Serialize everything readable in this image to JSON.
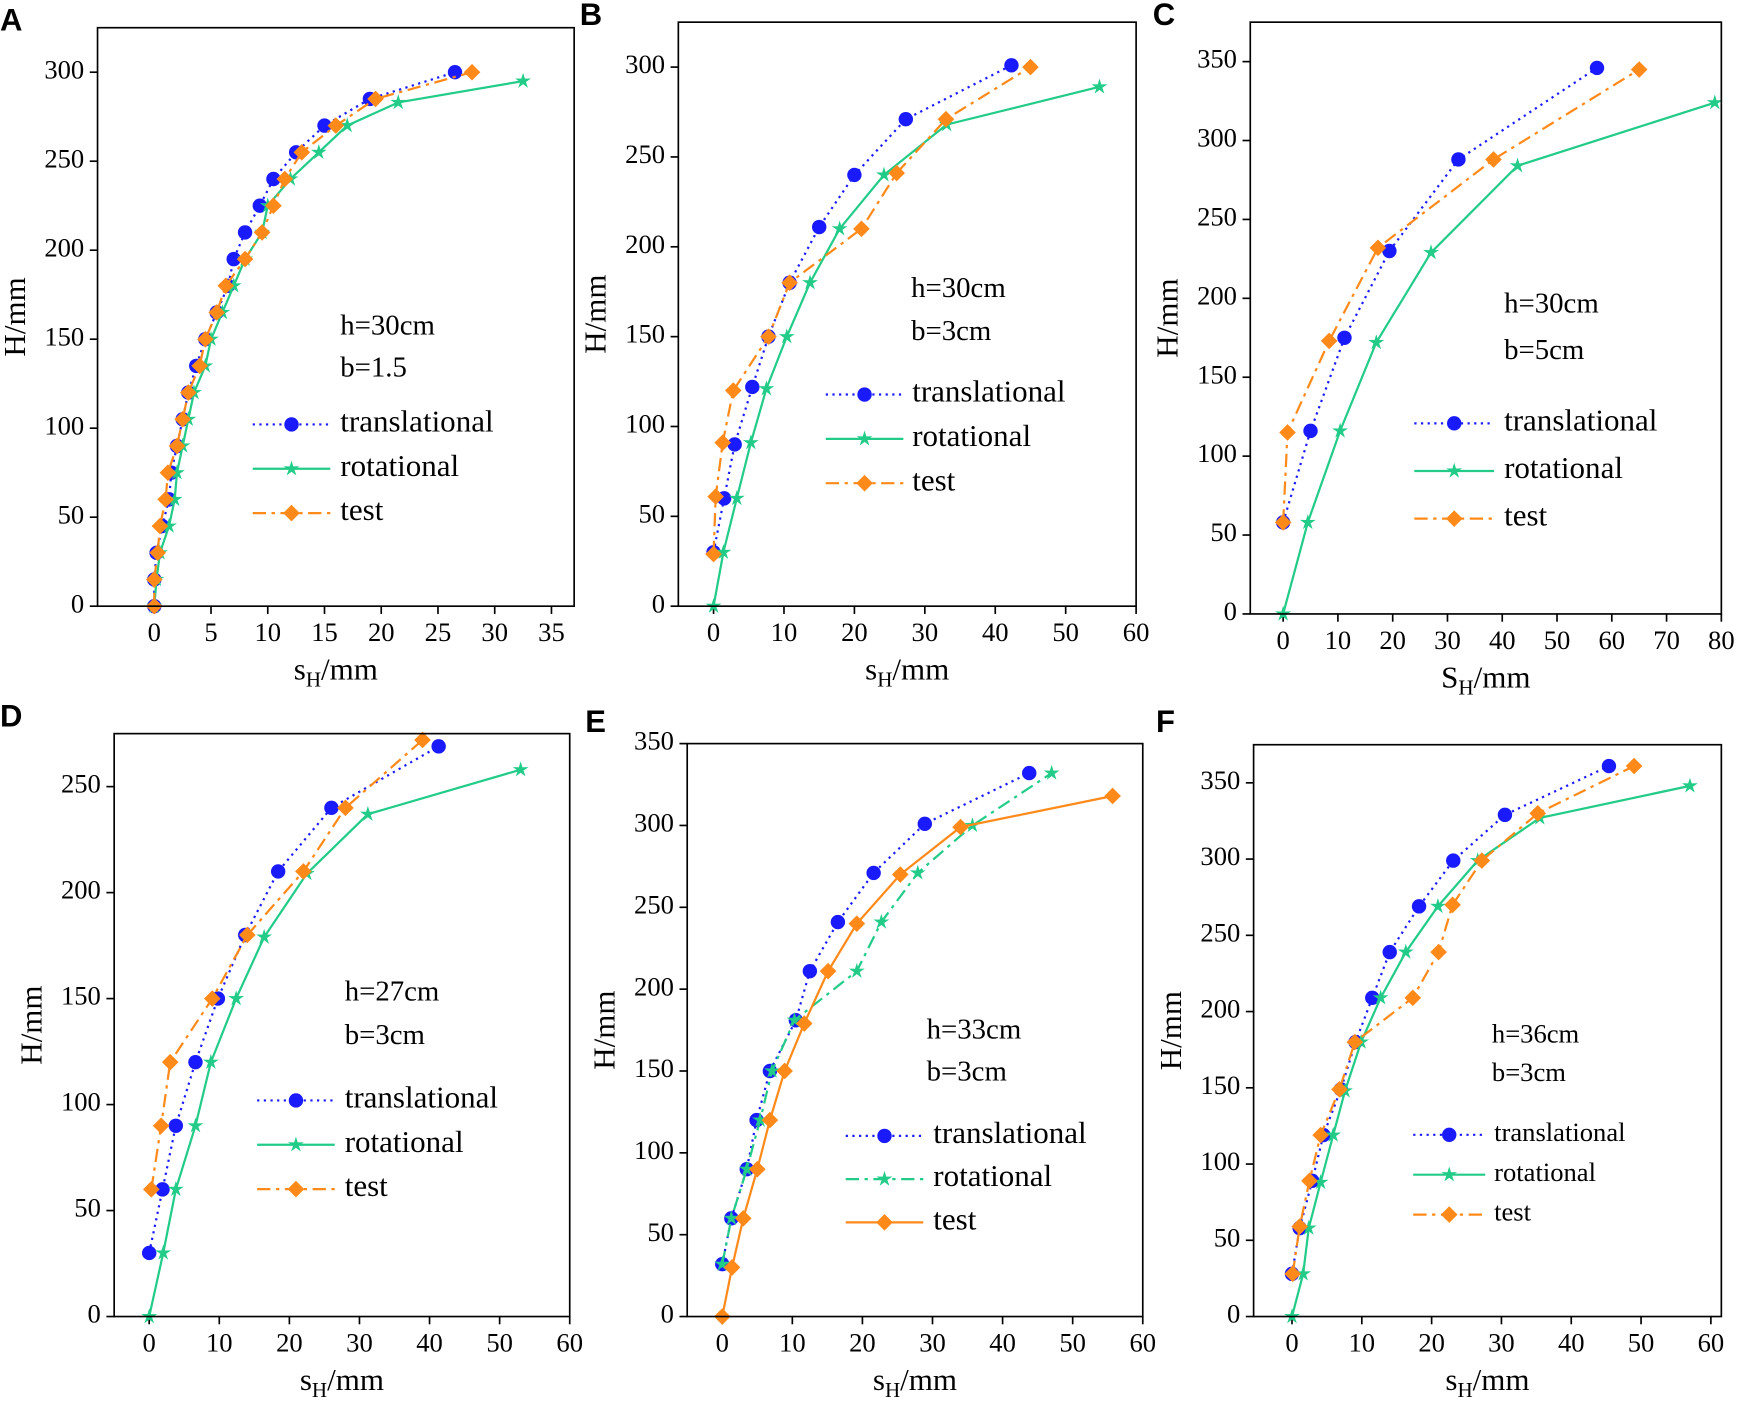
{
  "chart_data": [
    {
      "type": "line",
      "label": "A",
      "annotation": [
        "h=30cm",
        "b=1.5"
      ],
      "xlabel": {
        "text": "s",
        "subscript": "H",
        "suffix": "/mm"
      },
      "ylabel": "H/mm",
      "xlim": [
        -5,
        37
      ],
      "ylim": [
        0,
        325
      ],
      "xticks": [
        0,
        5,
        10,
        15,
        20,
        25,
        30,
        35
      ],
      "yticks": [
        0,
        50,
        100,
        150,
        200,
        250,
        300
      ],
      "series": [
        {
          "name": "translational",
          "color": "#1a1aff",
          "line_style": "dotted",
          "marker": "circle",
          "x": [
            0,
            0,
            0.2,
            0.7,
            1.3,
            1.5,
            2,
            2.5,
            3,
            3.7,
            4.5,
            5.5,
            6.5,
            7,
            8,
            9.3,
            10.5,
            12.5,
            15,
            19,
            26.5
          ],
          "values": [
            0,
            15,
            30,
            45,
            60,
            75,
            90,
            105,
            120,
            135,
            150,
            165,
            180,
            195,
            210,
            225,
            240,
            255,
            270,
            285,
            300
          ]
        },
        {
          "name": "rotational",
          "color": "#22cc88",
          "line_style": "solid",
          "marker": "star",
          "x": [
            0,
            0.2,
            0.5,
            1.3,
            1.8,
            2,
            2.5,
            3,
            3.5,
            4.5,
            5,
            6,
            7,
            8,
            9.5,
            10,
            12,
            14.5,
            17,
            21.5,
            32.5
          ],
          "values": [
            0,
            15,
            30,
            45,
            60,
            75,
            90,
            105,
            120,
            135,
            150,
            165,
            180,
            195,
            210,
            225,
            240,
            255,
            270,
            283,
            295
          ]
        },
        {
          "name": "test",
          "color": "#ff8a1a",
          "line_style": "dashdot",
          "marker": "diamond",
          "x": [
            0,
            0,
            0.3,
            0.5,
            1,
            1.2,
            2,
            2.5,
            3,
            4,
            4.5,
            5.5,
            6.3,
            8,
            9.5,
            10.5,
            11.5,
            13,
            16,
            19.5,
            28
          ],
          "values": [
            0,
            15,
            30,
            45,
            60,
            75,
            90,
            105,
            120,
            135,
            150,
            165,
            180,
            195,
            210,
            225,
            240,
            255,
            270,
            285,
            300
          ]
        }
      ]
    },
    {
      "type": "line",
      "label": "B",
      "annotation": [
        "h=30cm",
        "b=3cm"
      ],
      "xlabel": {
        "text": "s",
        "subscript": "H",
        "suffix": "/mm"
      },
      "ylabel": "H/mm",
      "xlim": [
        -5,
        60
      ],
      "ylim": [
        0,
        325
      ],
      "xticks": [
        0,
        10,
        20,
        30,
        40,
        50,
        60
      ],
      "yticks": [
        0,
        50,
        100,
        150,
        200,
        250,
        300
      ],
      "series": [
        {
          "name": "translational",
          "color": "#1a1aff",
          "line_style": "dotted",
          "marker": "circle",
          "x": [
            0,
            1.5,
            3,
            5.5,
            7.8,
            10.8,
            15,
            20,
            27.3,
            42.3
          ],
          "values": [
            30,
            60,
            90,
            122,
            150,
            180,
            211,
            240,
            271,
            301
          ]
        },
        {
          "name": "rotational",
          "color": "#22cc88",
          "line_style": "solid",
          "marker": "star",
          "x": [
            0,
            1.4,
            3.3,
            5.3,
            7.5,
            10.4,
            13.7,
            17.9,
            24.2,
            33.1,
            54.8
          ],
          "values": [
            0,
            30,
            60,
            91,
            121,
            150,
            180,
            210,
            240,
            268,
            289
          ]
        },
        {
          "name": "test",
          "color": "#ff8a1a",
          "line_style": "dashdot",
          "marker": "diamond",
          "x": [
            0,
            0.3,
            1.3,
            2.8,
            7.8,
            10.8,
            21,
            26,
            33,
            45
          ],
          "values": [
            29,
            61,
            91,
            120,
            150,
            180,
            210,
            241,
            271,
            300
          ]
        }
      ]
    },
    {
      "type": "line",
      "label": "C",
      "annotation": [
        "h=30cm",
        "b=5cm"
      ],
      "xlabel": {
        "text": "S",
        "subscript": "H",
        "suffix": "/mm"
      },
      "ylabel": "H/mm",
      "xlim": [
        -6,
        80
      ],
      "ylim": [
        0,
        375
      ],
      "xticks": [
        0,
        10,
        20,
        30,
        40,
        50,
        60,
        70,
        80
      ],
      "yticks": [
        0,
        50,
        100,
        150,
        200,
        250,
        300,
        350
      ],
      "series": [
        {
          "name": "translational",
          "color": "#1a1aff",
          "line_style": "dotted",
          "marker": "circle",
          "x": [
            0,
            5,
            11.2,
            19.4,
            32,
            57.3
          ],
          "values": [
            58,
            116,
            175,
            230,
            288,
            346
          ]
        },
        {
          "name": "rotational",
          "color": "#22cc88",
          "line_style": "solid",
          "marker": "star",
          "x": [
            0,
            4.5,
            10.4,
            17,
            27,
            42.8,
            78.8
          ],
          "values": [
            0,
            58,
            116,
            172,
            229,
            284,
            324
          ]
        },
        {
          "name": "test",
          "color": "#ff8a1a",
          "line_style": "dashdot",
          "marker": "diamond",
          "x": [
            0,
            0.8,
            8.4,
            17.3,
            38.4,
            65
          ],
          "values": [
            58,
            115,
            173,
            232,
            288,
            345
          ]
        }
      ]
    },
    {
      "type": "line",
      "label": "D",
      "annotation": [
        "h=27cm",
        "b=3cm"
      ],
      "xlabel": {
        "text": "s",
        "subscript": "H",
        "suffix": "/mm"
      },
      "ylabel": "H/mm",
      "xlim": [
        -5,
        60
      ],
      "ylim": [
        0,
        275
      ],
      "xticks": [
        0,
        10,
        20,
        30,
        40,
        50,
        60
      ],
      "yticks": [
        0,
        50,
        100,
        150,
        200,
        250
      ],
      "series": [
        {
          "name": "translational",
          "color": "#1a1aff",
          "line_style": "dotted",
          "marker": "circle",
          "x": [
            0,
            1.9,
            3.8,
            6.6,
            9.8,
            13.7,
            18.4,
            26,
            41.3
          ],
          "values": [
            30,
            60,
            90,
            120,
            150,
            180,
            210,
            240,
            269
          ]
        },
        {
          "name": "rotational",
          "color": "#22cc88",
          "line_style": "solid",
          "marker": "star",
          "x": [
            0,
            2,
            3.8,
            6.6,
            8.8,
            12.4,
            16.4,
            22.5,
            31.2,
            53
          ],
          "values": [
            0,
            30,
            60,
            90,
            120,
            150,
            179,
            209,
            237,
            258
          ]
        },
        {
          "name": "test",
          "color": "#ff8a1a",
          "line_style": "dashdot",
          "marker": "diamond",
          "x": [
            0.3,
            1.7,
            3,
            9,
            14,
            22,
            28,
            39
          ],
          "values": [
            60,
            90,
            120,
            150,
            180,
            210,
            240,
            272
          ]
        }
      ]
    },
    {
      "type": "line",
      "label": "E",
      "annotation": [
        "h=33cm",
        "b=3cm"
      ],
      "xlabel": {
        "text": "s",
        "subscript": "H",
        "suffix": "/mm"
      },
      "ylabel": "H/mm",
      "xlim": [
        -5,
        60
      ],
      "ylim": [
        0,
        350
      ],
      "xticks": [
        0,
        10,
        20,
        30,
        40,
        50,
        60
      ],
      "yticks": [
        0,
        50,
        100,
        150,
        200,
        250,
        300,
        350
      ],
      "series": [
        {
          "name": "translational",
          "color": "#1a1aff",
          "line_style": "dotted",
          "marker": "circle",
          "x": [
            0,
            1.3,
            3.5,
            4.9,
            6.8,
            10.5,
            12.5,
            16.5,
            21.6,
            28.9,
            43.8
          ],
          "values": [
            32,
            60,
            90,
            120,
            150,
            181,
            211,
            241,
            271,
            301,
            332
          ]
        },
        {
          "name": "rotational",
          "color": "#22cc88",
          "line_style": "dashdot",
          "marker": "star",
          "x": [
            0,
            1.3,
            3.5,
            5.4,
            7.1,
            10.3,
            19.2,
            22.7,
            27.9,
            35.7,
            47
          ],
          "values": [
            32,
            60,
            90,
            120,
            150,
            181,
            211,
            241,
            271,
            300,
            332
          ]
        },
        {
          "name": "test",
          "color": "#ff8a1a",
          "line_style": "solid",
          "marker": "diamond",
          "x": [
            0,
            1.4,
            3,
            5,
            6.8,
            8.9,
            11.7,
            15.1,
            19.2,
            25.4,
            34,
            55.7
          ],
          "values": [
            0,
            30,
            60,
            90,
            120,
            150,
            179,
            211,
            240,
            270,
            299,
            318
          ]
        }
      ]
    },
    {
      "type": "line",
      "label": "F",
      "annotation": [
        "h=36cm",
        "b=3cm"
      ],
      "xlabel": {
        "text": "s",
        "subscript": "H",
        "suffix": "/mm"
      },
      "ylabel": "H/mm",
      "xlim": [
        -5.5,
        61.5
      ],
      "ylim": [
        0,
        375
      ],
      "xticks": [
        0,
        10,
        20,
        30,
        40,
        50,
        60
      ],
      "yticks": [
        0,
        50,
        100,
        150,
        200,
        250,
        300,
        350
      ],
      "series": [
        {
          "name": "translational",
          "color": "#1a1aff",
          "line_style": "dotted",
          "marker": "circle",
          "x": [
            0,
            1.1,
            2.9,
            4.5,
            7,
            9.1,
            11.5,
            14,
            18.2,
            23.1,
            30.5,
            45.4
          ],
          "values": [
            28,
            58,
            89,
            119,
            149,
            180,
            209,
            239,
            269,
            299,
            329,
            361
          ]
        },
        {
          "name": "rotational",
          "color": "#22cc88",
          "line_style": "solid",
          "marker": "star",
          "x": [
            0,
            1.6,
            2.4,
            4.1,
            5.9,
            7.6,
            9.9,
            12.7,
            16.3,
            20.9,
            26.6,
            35.5,
            57
          ],
          "values": [
            0,
            28,
            58,
            88,
            119,
            148,
            180,
            209,
            239,
            269,
            299,
            327,
            348
          ]
        },
        {
          "name": "test",
          "color": "#ff8a1a",
          "line_style": "dashdot",
          "marker": "diamond",
          "x": [
            0.1,
            1.1,
            2.5,
            4.1,
            6.8,
            9,
            17.3,
            21,
            23,
            27.2,
            35.2,
            49
          ],
          "values": [
            28,
            59,
            89,
            119,
            149,
            180,
            209,
            239,
            270,
            299,
            330,
            361
          ]
        }
      ]
    }
  ]
}
